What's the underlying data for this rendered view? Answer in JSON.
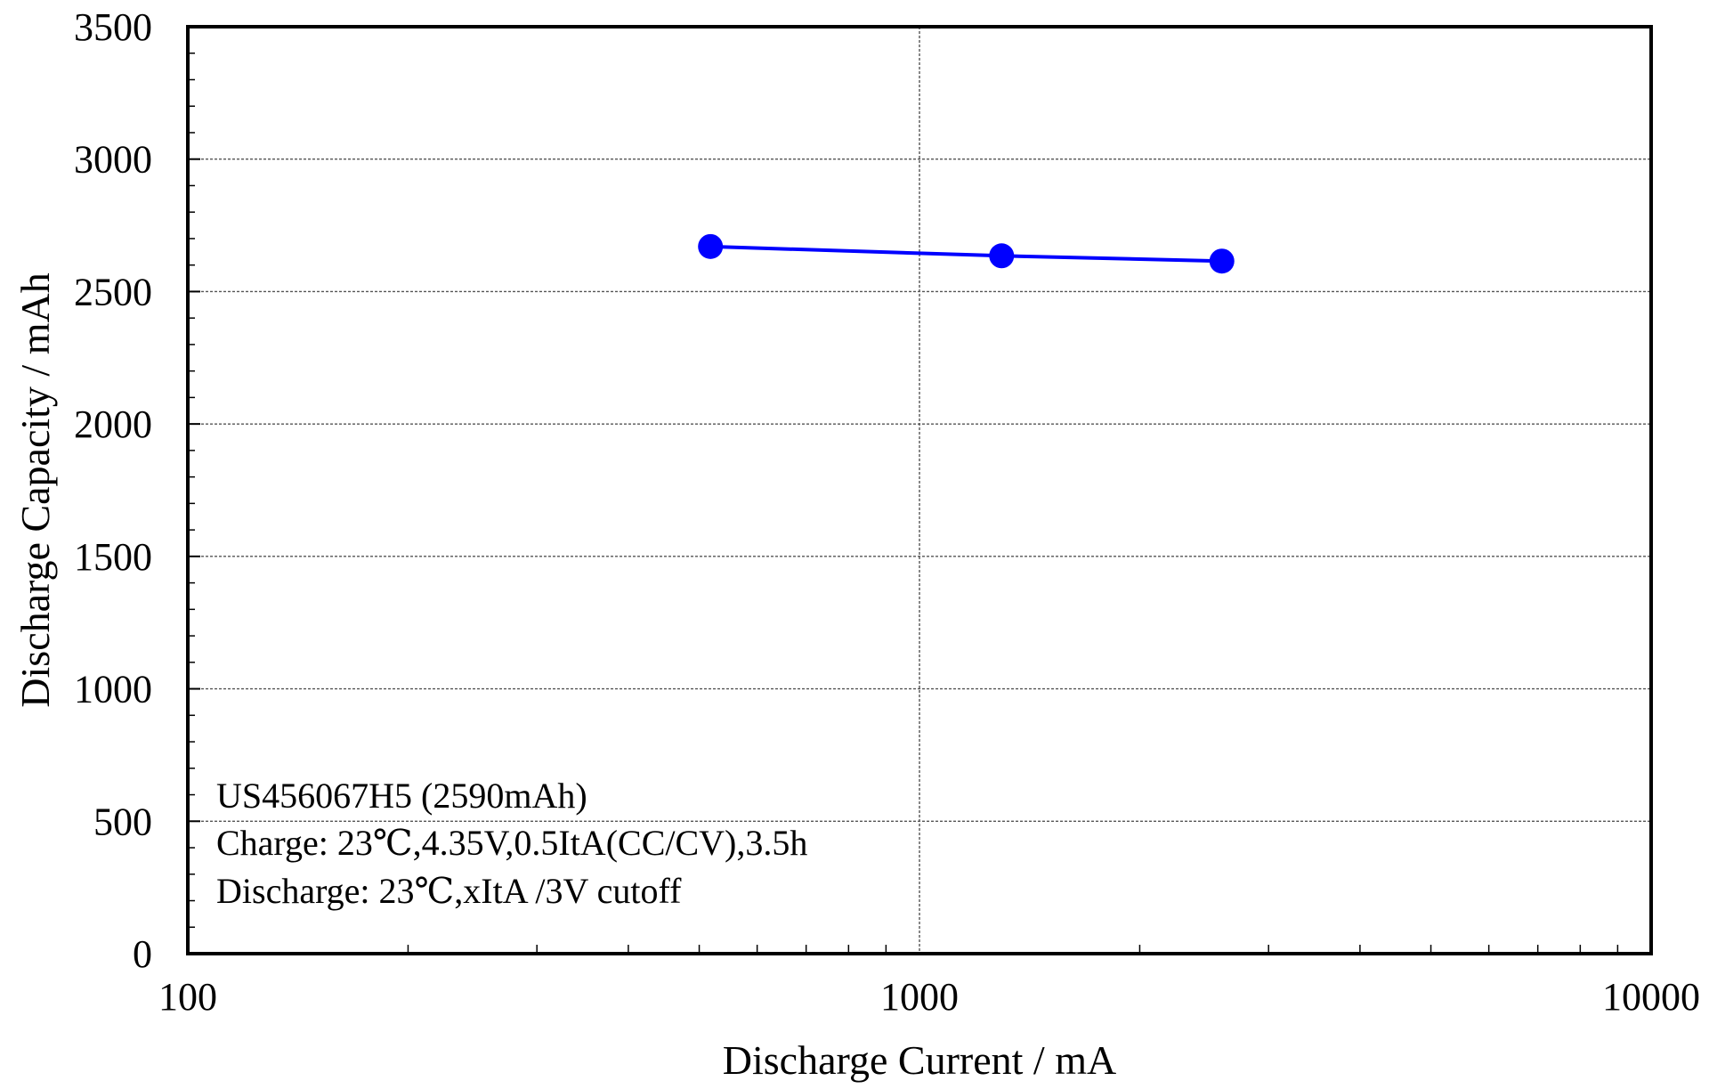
{
  "chart_data": {
    "type": "line",
    "x_scale": "log",
    "xlim": [
      100,
      10000
    ],
    "ylim": [
      0,
      3500
    ],
    "xlabel": "Discharge Current / mA",
    "ylabel": "Discharge Capacity / mAh",
    "x_ticks": [
      100,
      1000,
      10000
    ],
    "y_ticks": [
      0,
      500,
      1000,
      1500,
      2000,
      2500,
      3000,
      3500
    ],
    "grid": true,
    "series": [
      {
        "color": "#0000ff",
        "marker": "circle",
        "points": [
          {
            "x": 518,
            "y": 2670
          },
          {
            "x": 1295,
            "y": 2635
          },
          {
            "x": 2590,
            "y": 2615
          }
        ]
      }
    ],
    "annotations": [
      "US456067H5 (2590mAh)",
      "Charge: 23℃,4.35V,0.5ItA(CC/CV),3.5h",
      "Discharge: 23℃,xItA /3V cutoff"
    ]
  }
}
